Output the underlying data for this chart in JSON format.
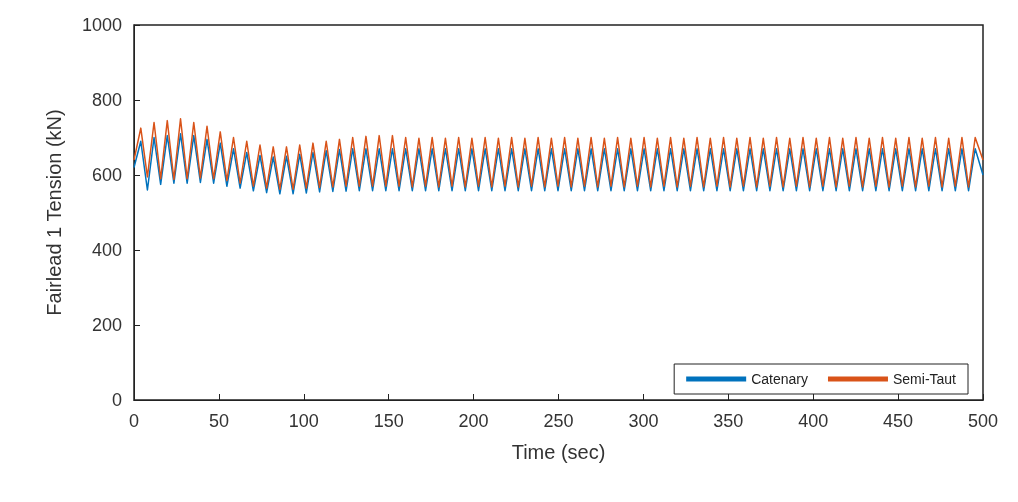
{
  "chart_data": {
    "type": "line",
    "xlabel": "Time (sec)",
    "ylabel": "Fairlead 1 Tension (kN)",
    "xlim": [
      0,
      500
    ],
    "xticks": [
      0,
      50,
      100,
      150,
      200,
      250,
      300,
      350,
      400,
      450,
      500
    ],
    "ylim": [
      0,
      1000
    ],
    "yticks": [
      0,
      200,
      400,
      600,
      800,
      1000
    ],
    "grid": false,
    "legend": "bottom right",
    "marker": "none",
    "line_style": "solid",
    "x": [
      0,
      4,
      7.9,
      11.8,
      15.7,
      19.6,
      23.5,
      27.4,
      31.3,
      35.2,
      39.1,
      43,
      46.9,
      50.8,
      54.7,
      58.6,
      62.5,
      66.4,
      70.3,
      74.2,
      78.1,
      82,
      85.9,
      89.8,
      93.7,
      97.6,
      101.5,
      105.4,
      109.3,
      113.2,
      117.1,
      121,
      124.9,
      128.8,
      132.7,
      136.6,
      140.5,
      144.4,
      148.3,
      152.2,
      156.1,
      160,
      163.9,
      167.8,
      171.7,
      175.6,
      179.5,
      183.4,
      187.3,
      191.2,
      195.1,
      199,
      202.9,
      206.8,
      210.7,
      214.6,
      218.5,
      222.4,
      226.3,
      230.2,
      234.1,
      238,
      241.9,
      245.8,
      249.7,
      253.6,
      257.5,
      261.4,
      265.3,
      269.2,
      273.1,
      277,
      280.9,
      284.8,
      288.7,
      292.6,
      296.5,
      300.4,
      304.3,
      308.2,
      312.1,
      316,
      319.9,
      323.8,
      327.7,
      331.6,
      335.5,
      339.4,
      343.3,
      347.2,
      351.1,
      355,
      358.9,
      362.8,
      366.7,
      370.6,
      374.5,
      378.4,
      382.3,
      386.2,
      390.1,
      394,
      397.9,
      401.8,
      405.7,
      409.6,
      413.5,
      417.4,
      421.3,
      425.2,
      429.1,
      433,
      436.9,
      440.8,
      444.7,
      448.6,
      452.5,
      456.4,
      460.3,
      464.2,
      468.1,
      472,
      475.9,
      479.8,
      483.7,
      487.6,
      491.5,
      495.4,
      500
    ],
    "series": [
      {
        "name": "Catenary",
        "color": "#0072bd",
        "values": [
          620,
          690,
          560,
          700,
          575,
          705,
          578,
          710,
          578,
          705,
          580,
          695,
          578,
          685,
          570,
          670,
          565,
          660,
          558,
          652,
          553,
          648,
          550,
          650,
          550,
          655,
          552,
          660,
          555,
          665,
          556,
          668,
          557,
          670,
          558,
          670,
          558,
          670,
          558,
          670,
          558,
          670,
          558,
          670,
          558,
          670,
          558,
          670,
          558,
          670,
          558,
          670,
          558,
          670,
          558,
          670,
          558,
          670,
          558,
          670,
          558,
          670,
          558,
          670,
          558,
          670,
          558,
          670,
          558,
          670,
          558,
          670,
          558,
          670,
          558,
          670,
          558,
          670,
          558,
          670,
          558,
          670,
          558,
          670,
          558,
          670,
          558,
          670,
          558,
          670,
          558,
          670,
          558,
          670,
          558,
          670,
          558,
          670,
          558,
          670,
          558,
          670,
          558,
          670,
          558,
          670,
          558,
          670,
          558,
          670,
          558,
          670,
          558,
          670,
          558,
          670,
          558,
          670,
          558,
          670,
          558,
          670,
          558,
          670,
          558,
          670,
          558,
          670,
          600
        ]
      },
      {
        "name": "Semi-Taut",
        "color": "#d95319",
        "values": [
          640,
          725,
          595,
          740,
          590,
          745,
          588,
          750,
          590,
          740,
          592,
          730,
          590,
          715,
          585,
          700,
          578,
          690,
          570,
          680,
          565,
          675,
          562,
          675,
          562,
          680,
          565,
          685,
          567,
          690,
          568,
          695,
          570,
          700,
          570,
          703,
          570,
          705,
          570,
          705,
          570,
          700,
          568,
          698,
          570,
          700,
          568,
          698,
          570,
          700,
          568,
          698,
          570,
          700,
          568,
          698,
          570,
          700,
          568,
          698,
          570,
          700,
          568,
          698,
          570,
          700,
          568,
          698,
          570,
          700,
          568,
          698,
          570,
          700,
          568,
          698,
          570,
          700,
          568,
          698,
          570,
          700,
          568,
          698,
          570,
          700,
          568,
          698,
          570,
          700,
          568,
          698,
          570,
          700,
          568,
          698,
          570,
          700,
          568,
          698,
          570,
          700,
          568,
          698,
          570,
          700,
          568,
          698,
          570,
          700,
          568,
          698,
          570,
          700,
          568,
          698,
          570,
          700,
          568,
          698,
          570,
          700,
          568,
          698,
          570,
          700,
          568,
          700,
          640
        ]
      }
    ]
  }
}
